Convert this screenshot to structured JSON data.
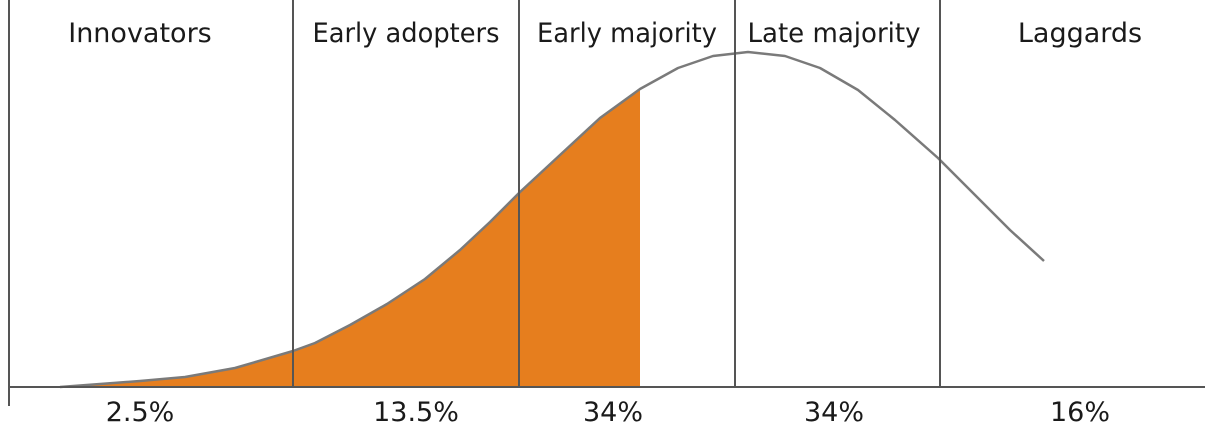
{
  "segments": [
    {
      "label": "Innovators",
      "share": "2.5%"
    },
    {
      "label": "Early adopters",
      "share": "13.5%"
    },
    {
      "label": "Early majority",
      "share": "34%"
    },
    {
      "label": "Late majority",
      "share": "34%"
    },
    {
      "label": "Laggards",
      "share": "16%"
    }
  ],
  "colors": {
    "fill": "#E67E1E",
    "curve": "#7a7a7a",
    "dividers": "#555555",
    "axis": "#555555",
    "text": "#1a1a1a"
  }
}
